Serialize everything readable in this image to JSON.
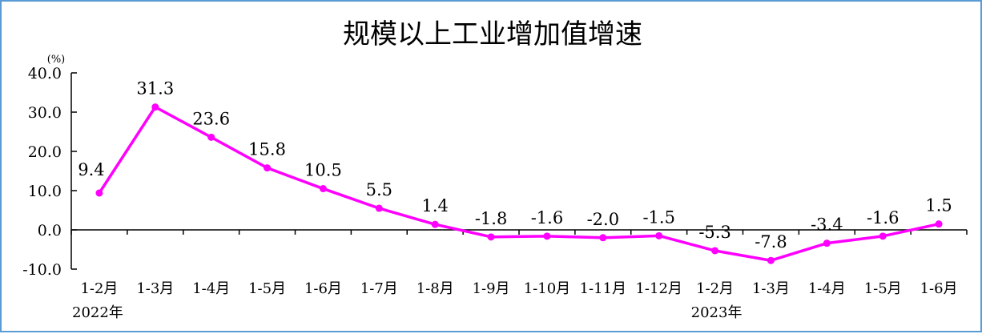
{
  "chart_data": {
    "type": "line",
    "title": "规模以上工业增加值增速",
    "unit_label": "(%)",
    "categories": [
      "1-2月",
      "1-3月",
      "1-4月",
      "1-5月",
      "1-6月",
      "1-7月",
      "1-8月",
      "1-9月",
      "1-10月",
      "1-11月",
      "1-12月",
      "1-2月",
      "1-3月",
      "1-4月",
      "1-5月",
      "1-6月"
    ],
    "values": [
      9.4,
      31.3,
      23.6,
      15.8,
      10.5,
      5.5,
      1.4,
      -1.8,
      -1.6,
      -2.0,
      -1.5,
      -5.3,
      -7.8,
      -3.4,
      -1.6,
      1.5
    ],
    "value_labels": [
      "9.4",
      "31.3",
      "23.6",
      "15.8",
      "10.5",
      "5.5",
      "1.4",
      "-1.8",
      "-1.6",
      "-2.0",
      "-1.5",
      "-5.3",
      "-7.8",
      "-3.4",
      "-1.6",
      "1.5"
    ],
    "year_labels": [
      "2022年",
      "2023年"
    ],
    "yticks": [
      "40.0",
      "30.0",
      "20.0",
      "10.0",
      "0.0",
      "-10.0"
    ],
    "ylim": [
      -10,
      40
    ],
    "grid": false,
    "line_color": "#ff00ff"
  }
}
